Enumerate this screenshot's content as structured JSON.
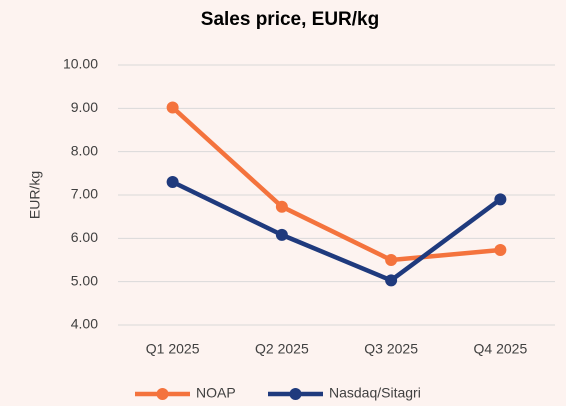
{
  "chart_data": {
    "type": "line",
    "title": "Sales price, EUR/kg",
    "y_label": "EUR/kg",
    "categories": [
      "Q1 2025",
      "Q2 2025",
      "Q3 2025",
      "Q4 2025"
    ],
    "series": [
      {
        "name": "NOAP",
        "color": "#f4733d",
        "values": [
          9.02,
          6.73,
          5.5,
          5.73
        ]
      },
      {
        "name": "Nasdaq/Sitagri",
        "color": "#1f3a7d",
        "values": [
          7.3,
          6.08,
          5.03,
          6.9
        ]
      }
    ],
    "ylim": [
      4,
      10
    ],
    "yticks": [
      {
        "value": 4,
        "label": "4.00"
      },
      {
        "value": 5,
        "label": "5.00"
      },
      {
        "value": 6,
        "label": "6.00"
      },
      {
        "value": 7,
        "label": "7.00"
      },
      {
        "value": 8,
        "label": "8.00"
      },
      {
        "value": 9,
        "label": "9.00"
      },
      {
        "value": 10,
        "label": "10.00"
      }
    ],
    "grid": true,
    "legend": "bottom"
  }
}
